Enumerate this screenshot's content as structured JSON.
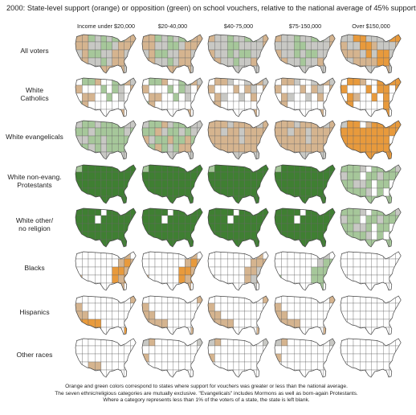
{
  "title": "2000:  State-level support (orange) or opposition (green) on school vouchers, relative to the national average of 45% support",
  "colors": {
    "strong_support": "#e89a3c",
    "support": "#d5b48f",
    "neutral": "#c8c8c4",
    "blank": "#ffffff",
    "oppose": "#a6c79a",
    "strong_oppose": "#3f7f32",
    "outline": "#444444"
  },
  "footnote": [
    "Orange and green colors correspond to states where support for vouchers was greater or less than the national average.",
    "The seven ethnic/religious categories are mutually exclusive.  \"Evangelicals\" includes Mormons as well as born-again Protestants.",
    "Where a category represents less than 1% of the voters of a state, the state is left blank."
  ],
  "chart_data": {
    "type": "map-grid",
    "title": "2000:  State-level support (orange) or opposition (green) on school vouchers, relative to the national average of 45% support",
    "legend": "Orange = support above national average; green = support below national average; blank = category under 1% of state voters",
    "columns": [
      "Income under $20,000",
      "$20-40,000",
      "$40-75,000",
      "$75-150,000",
      "Over $150,000"
    ],
    "rows": [
      {
        "label": "All voters",
        "pattern": [
          "mixA",
          "mixA",
          "mixB",
          "mixB",
          "mixC"
        ]
      },
      {
        "label": "White\nCatholics",
        "pattern": [
          "sparseMix",
          "sparseMix",
          "sparseTan",
          "sparseTan",
          "sparseOrange"
        ]
      },
      {
        "label": "White evangelicals",
        "pattern": [
          "greenMix",
          "greenTan",
          "tanMix",
          "tanMix",
          "orangeMix"
        ]
      },
      {
        "label": "White non-evang.\nProtestants",
        "pattern": [
          "greenDark",
          "greenDark",
          "greenDark",
          "greenDark",
          "greenLightSparse"
        ]
      },
      {
        "label": "White other/\nno religion",
        "pattern": [
          "greenDark2",
          "greenDark2",
          "greenDark2",
          "greenDark2",
          "greenLightSparse"
        ]
      },
      {
        "label": "Blacks",
        "pattern": [
          "blackA",
          "blackA",
          "blackB",
          "blackC",
          "blackD"
        ]
      },
      {
        "label": "Hispanics",
        "pattern": [
          "hispA",
          "hispB",
          "hispB",
          "hispB",
          "hispC"
        ]
      },
      {
        "label": "Other races",
        "pattern": [
          "otherA",
          "otherB",
          "otherB",
          "otherB",
          "otherC"
        ]
      }
    ]
  }
}
